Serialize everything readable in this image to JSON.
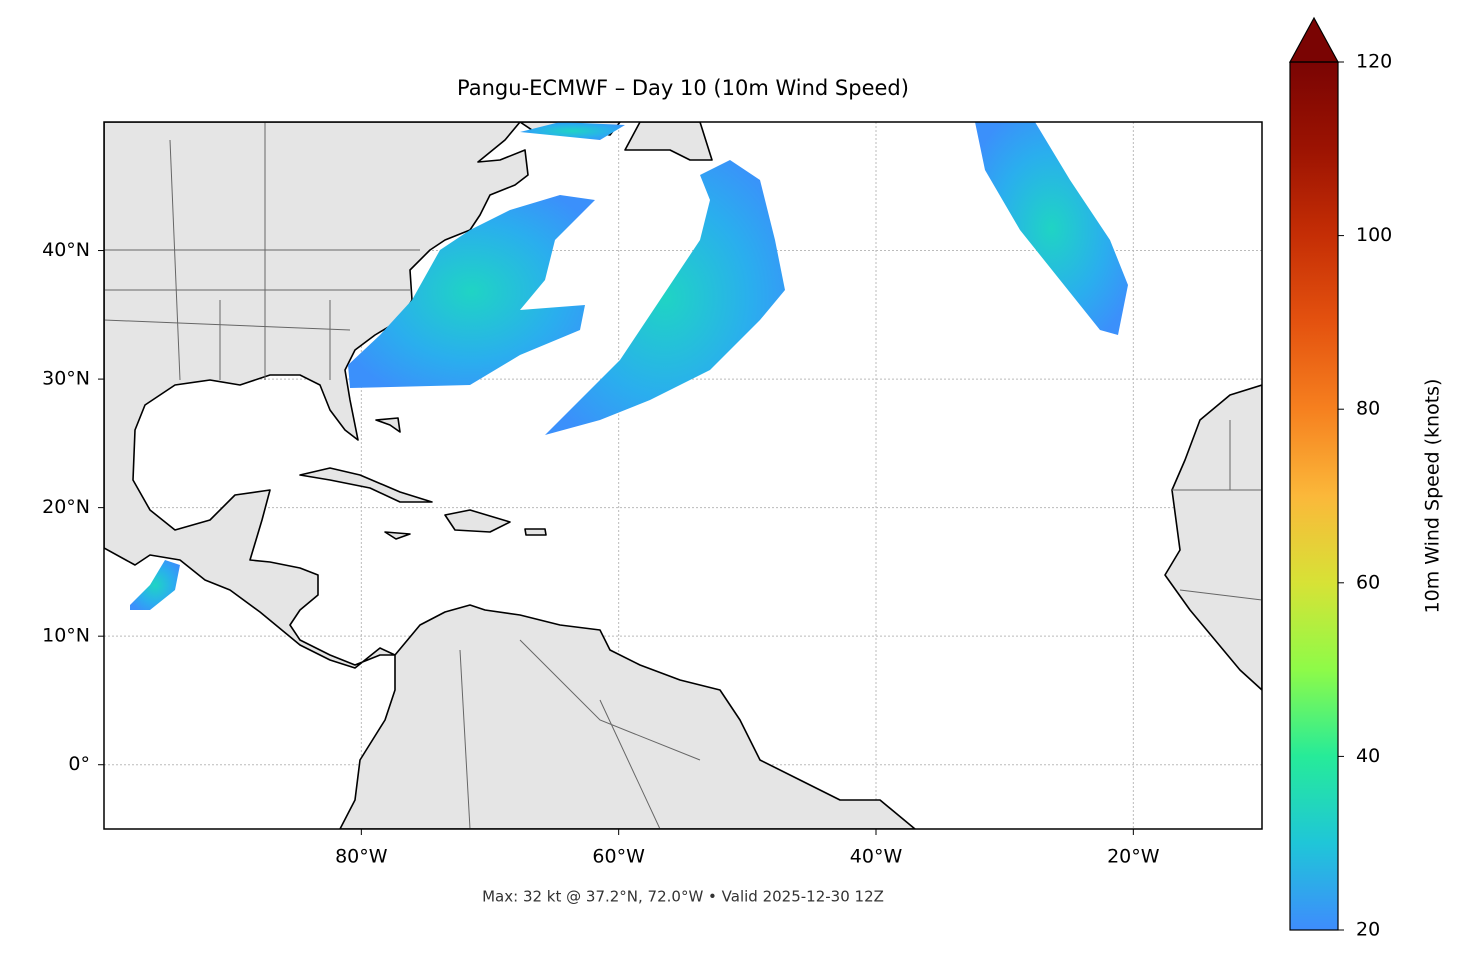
{
  "chart_data": {
    "type": "map",
    "title": "Pangu-ECMWF – Day 10 (10m Wind Speed)",
    "footnote": "Max: 32 kt @ 37.2°N, 72.0°W • Valid 2025-12-30 12Z",
    "xlim": [
      -100,
      -10
    ],
    "ylim": [
      -5,
      50
    ],
    "xticks": [
      {
        "value": -80,
        "label": "80°W"
      },
      {
        "value": -60,
        "label": "60°W"
      },
      {
        "value": -40,
        "label": "40°W"
      },
      {
        "value": -20,
        "label": "20°W"
      }
    ],
    "yticks": [
      {
        "value": 0,
        "label": "0°"
      },
      {
        "value": 10,
        "label": "10°N"
      },
      {
        "value": 20,
        "label": "20°N"
      },
      {
        "value": 30,
        "label": "30°N"
      },
      {
        "value": 40,
        "label": "40°N"
      }
    ],
    "grid": true,
    "colorbar": {
      "label": "10m Wind Speed (knots)",
      "lim": [
        20,
        120
      ],
      "ticks": [
        20,
        40,
        60,
        80,
        100,
        120
      ],
      "colors": [
        "#3e8cfd",
        "#1fc6d8",
        "#26eb99",
        "#8efb48",
        "#d7e236",
        "#fbb83a",
        "#f6801f",
        "#e4520f",
        "#c52e05",
        "#9c1302",
        "#7a0403"
      ],
      "extend": "max"
    }
  }
}
